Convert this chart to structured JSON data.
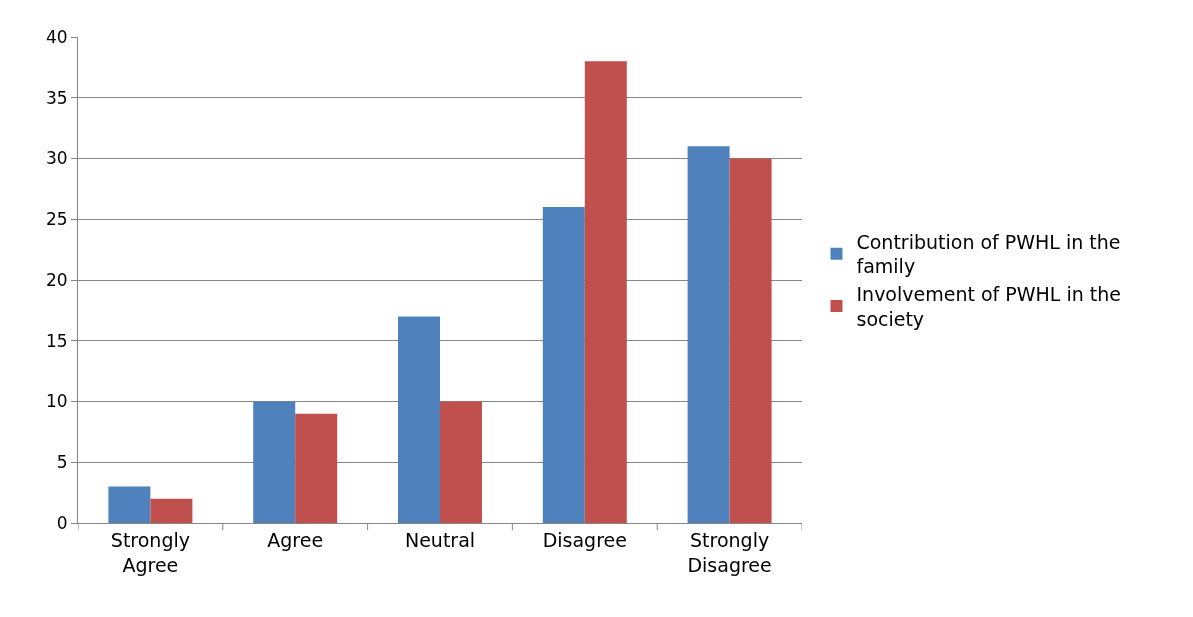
{
  "chart_data": {
    "type": "bar",
    "categories": [
      "Strongly Agree",
      "Agree",
      "Neutral",
      "Disagree",
      "Strongly Disagree"
    ],
    "series": [
      {
        "name": "Contribution of PWHL in the family",
        "color": "#4f81bd",
        "values": [
          3,
          10,
          17,
          26,
          31
        ]
      },
      {
        "name": "Involvement of PWHL in the society",
        "color": "#c0504d",
        "values": [
          2,
          9,
          10,
          38,
          30
        ]
      }
    ],
    "ylim": [
      0,
      40
    ],
    "yticks": [
      0,
      5,
      10,
      15,
      20,
      25,
      30,
      35,
      40
    ],
    "grid": "y",
    "legend": "right"
  }
}
